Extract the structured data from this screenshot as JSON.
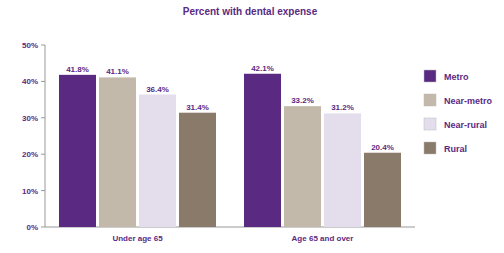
{
  "chart_data": {
    "type": "bar",
    "title": "Percent with dental expense",
    "categories": [
      "Under age 65",
      "Age 65 and over"
    ],
    "series": [
      {
        "name": "Metro",
        "color": "#5a2a83",
        "values": [
          41.8,
          42.1
        ],
        "value_labels": [
          "41.8%",
          "42.1%"
        ]
      },
      {
        "name": "Near-metro",
        "color": "#c3b9aa",
        "values": [
          41.1,
          33.2
        ],
        "value_labels": [
          "41.1%",
          "33.2%"
        ]
      },
      {
        "name": "Near-rural",
        "color": "#e4ddec",
        "values": [
          36.4,
          31.2
        ],
        "value_labels": [
          "36.4%",
          "31.2%"
        ]
      },
      {
        "name": "Rural",
        "color": "#8a7a69",
        "values": [
          31.4,
          20.4
        ],
        "value_labels": [
          "31.4%",
          "20.4%"
        ]
      }
    ],
    "ylim": [
      0,
      50
    ],
    "yticks": [
      {
        "value": 0,
        "label": "0%"
      },
      {
        "value": 10,
        "label": "10%"
      },
      {
        "value": 20,
        "label": "20%"
      },
      {
        "value": 30,
        "label": "30%"
      },
      {
        "value": 40,
        "label": "40%"
      },
      {
        "value": 50,
        "label": "50%"
      }
    ],
    "grid": false,
    "data_labels": true,
    "legend": "right"
  }
}
